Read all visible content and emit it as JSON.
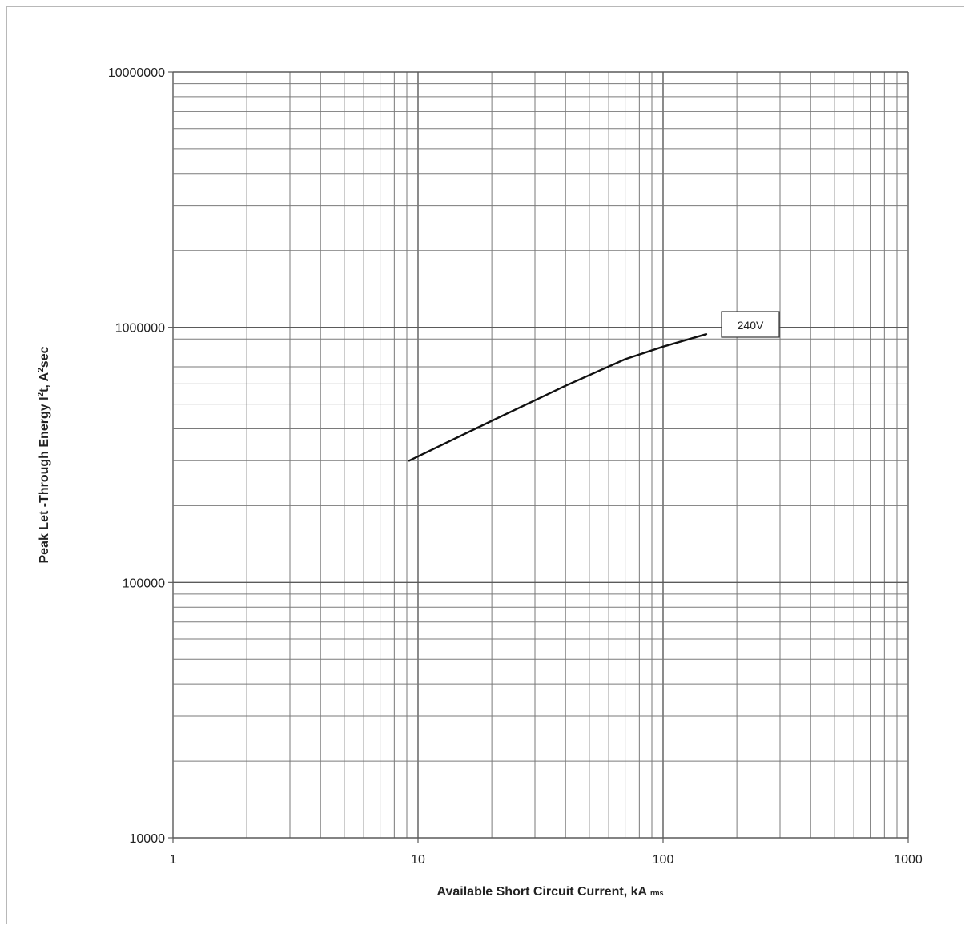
{
  "chart_data": {
    "type": "line",
    "xscale": "log",
    "yscale": "log",
    "xlim": [
      1,
      1000
    ],
    "ylim": [
      10000,
      10000000
    ],
    "grid": true,
    "xlabel_main": "Available Short Circuit Current, kA",
    "xlabel_sub": "rms",
    "ylabel_pre": "Peak Let -Through Energy I",
    "ylabel_sup1": "2",
    "ylabel_mid": "t, A",
    "ylabel_sup2": "2",
    "ylabel_post": "sec",
    "x_ticks": [
      {
        "value": 1,
        "label": "1"
      },
      {
        "value": 10,
        "label": "10"
      },
      {
        "value": 100,
        "label": "100"
      },
      {
        "value": 1000,
        "label": "1000"
      }
    ],
    "y_ticks": [
      {
        "value": 10000,
        "label": "10000"
      },
      {
        "value": 100000,
        "label": "100000"
      },
      {
        "value": 1000000,
        "label": "1000000"
      },
      {
        "value": 10000000,
        "label": "10000000"
      }
    ],
    "series": [
      {
        "name": "240V",
        "color": "#111111",
        "x": [
          9.2,
          20,
          40,
          70,
          100,
          150
        ],
        "y": [
          300000,
          430000,
          590000,
          750000,
          840000,
          940000
        ]
      }
    ],
    "annotation": {
      "text": "240V"
    }
  }
}
